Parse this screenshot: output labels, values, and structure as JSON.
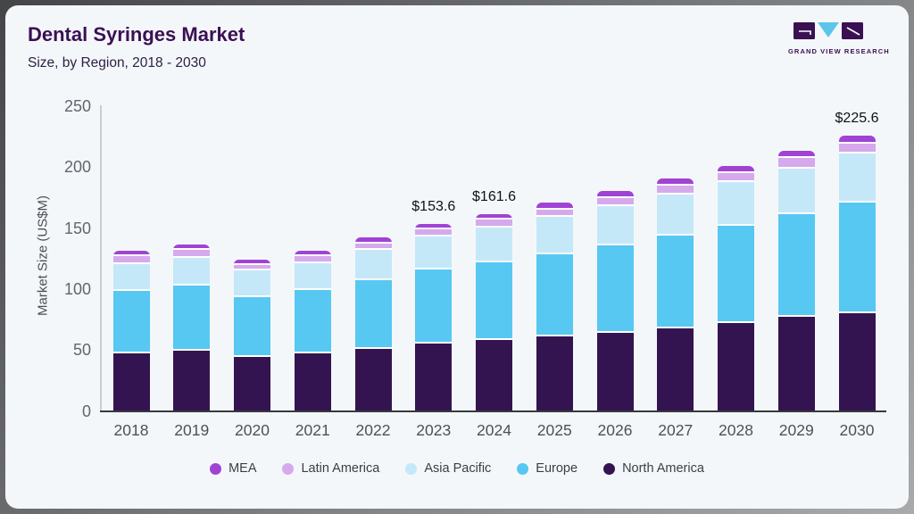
{
  "header": {
    "title": "Dental Syringes Market",
    "subtitle": "Size, by Region, 2018 - 2030"
  },
  "logo": {
    "text": "GRAND VIEW RESEARCH",
    "square_color": "#3b1053",
    "triangle_color": "#5bc6ea"
  },
  "chart_data": {
    "type": "bar",
    "stacked": true,
    "title": "Dental Syringes Market Size, by Region, 2018 - 2030",
    "xlabel": "",
    "ylabel": "Market Size (US$M)",
    "ylim": [
      0,
      250
    ],
    "yticks": [
      0,
      50,
      100,
      150,
      200,
      250
    ],
    "grid": false,
    "legend_position": "bottom",
    "categories": [
      "2018",
      "2019",
      "2020",
      "2021",
      "2022",
      "2023",
      "2024",
      "2025",
      "2026",
      "2027",
      "2028",
      "2029",
      "2030"
    ],
    "series": [
      {
        "name": "North America",
        "color": "#341450",
        "values": [
          47.5,
          49.5,
          44.0,
          47.3,
          51.0,
          55.6,
          58.4,
          61.2,
          64.2,
          67.9,
          72.3,
          77.2,
          80.4
        ]
      },
      {
        "name": "Europe",
        "color": "#56c8f2",
        "values": [
          51.0,
          53.0,
          49.0,
          52.0,
          56.5,
          60.7,
          63.4,
          67.0,
          71.5,
          75.9,
          79.4,
          84.2,
          90.8
        ]
      },
      {
        "name": "Asia Pacific",
        "color": "#c5e8f9",
        "values": [
          22.0,
          23.0,
          22.0,
          22.0,
          24.5,
          26.9,
          28.4,
          31.0,
          32.1,
          33.5,
          35.9,
          37.4,
          40.2
        ]
      },
      {
        "name": "Latin America",
        "color": "#d6a9ec",
        "values": [
          6.3,
          6.5,
          5.0,
          5.5,
          5.4,
          5.6,
          6.5,
          6.0,
          6.6,
          7.3,
          7.3,
          8.5,
          8.1
        ]
      },
      {
        "name": "MEA",
        "color": "#a043d4",
        "values": [
          4.8,
          4.5,
          4.3,
          4.8,
          5.0,
          4.8,
          4.9,
          5.5,
          6.0,
          6.0,
          6.3,
          5.9,
          6.1
        ]
      }
    ],
    "totals": [
      131.6,
      136.5,
      124.3,
      131.6,
      142.4,
      153.6,
      161.6,
      170.7,
      180.4,
      190.6,
      201.2,
      213.2,
      225.6
    ],
    "annotations": [
      {
        "category": "2023",
        "label": "$153.6"
      },
      {
        "category": "2024",
        "label": "$161.6"
      },
      {
        "category": "2030",
        "label": "$225.6"
      }
    ],
    "legend": [
      "MEA",
      "Latin America",
      "Asia Pacific",
      "Europe",
      "North America"
    ]
  }
}
